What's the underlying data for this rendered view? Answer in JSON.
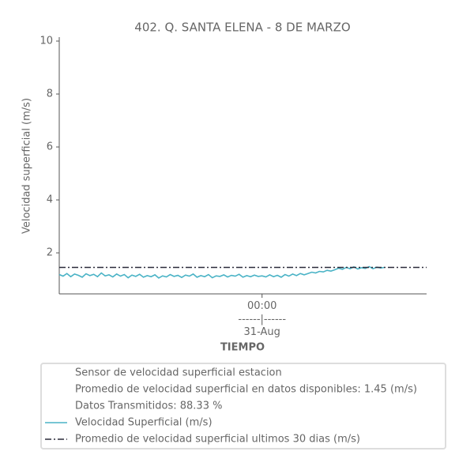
{
  "chart_data": {
    "type": "line",
    "title": "402. Q. SANTA ELENA - 8 DE MARZO",
    "y_label": "Velocidad superficial (m/s)",
    "x_label": "TIEMPO",
    "x": [
      -53,
      -52,
      -51,
      -50,
      -49,
      -48,
      -47,
      -46,
      -45,
      -44,
      -43,
      -42,
      -41,
      -40,
      -39,
      -38,
      -37,
      -36,
      -35,
      -34,
      -33,
      -32,
      -31,
      -30,
      -29,
      -28,
      -27,
      -26,
      -25,
      -24,
      -23,
      -22,
      -21,
      -20,
      -19,
      -18,
      -17,
      -16,
      -15,
      -14,
      -13,
      -12,
      -11,
      -10,
      -9,
      -8,
      -7,
      -6,
      -5,
      -4,
      -3,
      -2,
      -1,
      0,
      1,
      2,
      3,
      4,
      5,
      6,
      7,
      8,
      9,
      10,
      11,
      12,
      13,
      14,
      15,
      16,
      17,
      18,
      19,
      20,
      21,
      22,
      23,
      24,
      25,
      26,
      27,
      28,
      29,
      30,
      31,
      32
    ],
    "series": [
      {
        "name": "Velocidad Superficial (m/s)",
        "color": "#4ab3c6",
        "values": [
          1.18,
          1.12,
          1.22,
          1.1,
          1.2,
          1.15,
          1.08,
          1.21,
          1.14,
          1.19,
          1.1,
          1.24,
          1.13,
          1.17,
          1.09,
          1.2,
          1.12,
          1.18,
          1.06,
          1.16,
          1.11,
          1.19,
          1.08,
          1.14,
          1.1,
          1.17,
          1.05,
          1.13,
          1.09,
          1.18,
          1.11,
          1.15,
          1.07,
          1.16,
          1.12,
          1.2,
          1.08,
          1.14,
          1.1,
          1.18,
          1.06,
          1.13,
          1.11,
          1.17,
          1.09,
          1.15,
          1.12,
          1.19,
          1.08,
          1.14,
          1.1,
          1.16,
          1.11,
          1.13,
          1.09,
          1.17,
          1.1,
          1.15,
          1.08,
          1.18,
          1.12,
          1.2,
          1.14,
          1.22,
          1.17,
          1.22,
          1.27,
          1.24,
          1.3,
          1.28,
          1.34,
          1.31,
          1.36,
          1.42,
          1.38,
          1.45,
          1.4,
          1.47,
          1.39,
          1.44,
          1.41,
          1.48,
          1.4,
          1.46,
          1.43,
          1.45
        ]
      }
    ],
    "reference_line": {
      "name": "Promedio de velocidad superficial ultimos 30 dias (m/s)",
      "color": "#2a2a3a",
      "value": 1.45
    },
    "legend_notes": [
      "Sensor de velocidad superficial estacion",
      "Promedio de velocidad superficial en datos disponibles: 1.45 (m/s)",
      "Datos Transmitidos: 88.33 %"
    ],
    "xlim": [
      -53,
      43
    ],
    "xticks": [
      {
        "value": 0,
        "label": "00:00\n------|------\n31-Aug"
      }
    ],
    "ylim": [
      0.45,
      10
    ],
    "yticks": [
      2,
      4,
      6,
      8,
      10
    ],
    "grid": false
  }
}
